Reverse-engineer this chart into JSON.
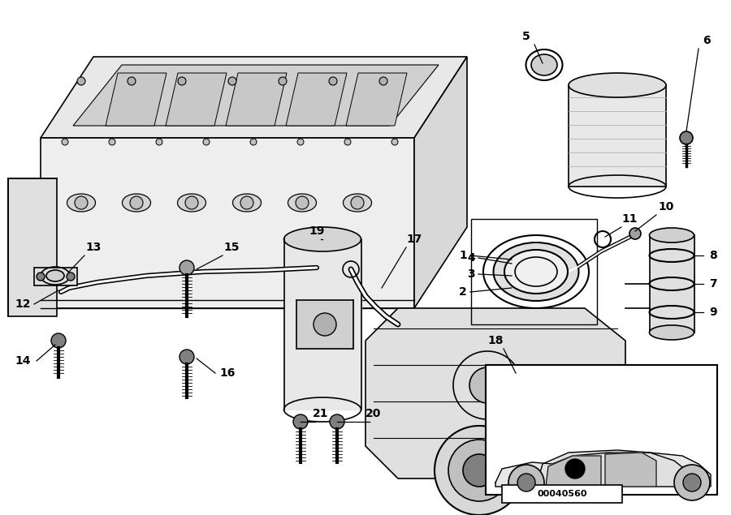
{
  "bg_color": "#ffffff",
  "line_color": "#000000",
  "image_code": "00040560"
}
